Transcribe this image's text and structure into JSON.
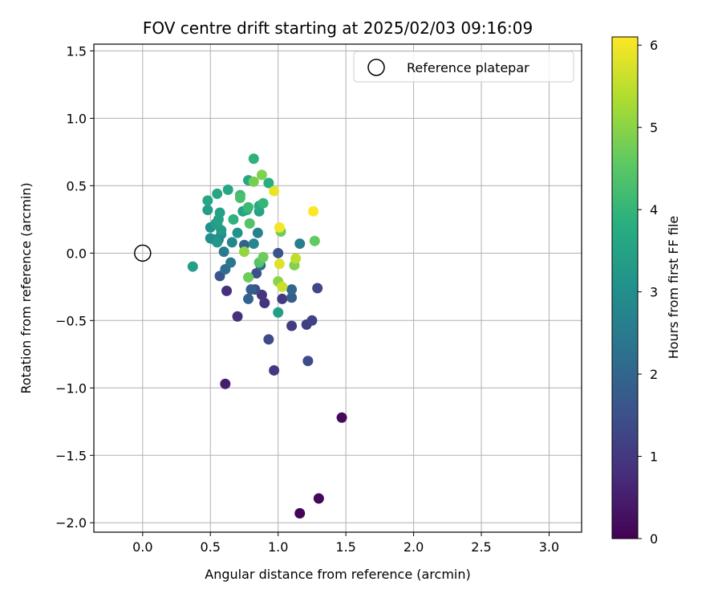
{
  "chart_data": {
    "type": "scatter",
    "title": "FOV centre drift starting at 2025/02/03 09:16:09",
    "xlabel": "Angular distance from reference (arcmin)",
    "ylabel": "Rotation from reference (arcmin)",
    "xlim": [
      -0.36,
      3.24
    ],
    "ylim": [
      -2.07,
      1.55
    ],
    "xticks": [
      0.0,
      0.5,
      1.0,
      1.5,
      2.0,
      2.5,
      3.0
    ],
    "xtick_labels": [
      "0.0",
      "0.5",
      "1.0",
      "1.5",
      "2.0",
      "2.5",
      "3.0"
    ],
    "yticks": [
      1.5,
      1.0,
      0.5,
      0.0,
      -0.5,
      -1.0,
      -1.5,
      -2.0
    ],
    "ytick_labels": [
      "1.5",
      "1.0",
      "0.5",
      "0.0",
      "−0.5",
      "−1.0",
      "−1.5",
      "−2.0"
    ],
    "grid": true,
    "legend": {
      "position": "top-right",
      "entries": [
        "Reference platepar"
      ]
    },
    "reference_point": {
      "x": 0.0,
      "y": 0.0
    },
    "colorbar": {
      "label": "Hours from first FF file",
      "range": [
        0,
        6.1
      ],
      "ticks": [
        0,
        1,
        2,
        3,
        4,
        5,
        6
      ],
      "tick_labels": [
        "0",
        "1",
        "2",
        "3",
        "4",
        "5",
        "6"
      ],
      "colormap": "viridis"
    },
    "points": [
      {
        "x": 1.16,
        "y": -1.93,
        "c": 0.05
      },
      {
        "x": 1.3,
        "y": -1.82,
        "c": 0.1
      },
      {
        "x": 1.47,
        "y": -1.22,
        "c": 0.15
      },
      {
        "x": 0.61,
        "y": -0.97,
        "c": 0.5
      },
      {
        "x": 0.62,
        "y": -0.28,
        "c": 0.8
      },
      {
        "x": 0.7,
        "y": -0.47,
        "c": 0.8
      },
      {
        "x": 0.88,
        "y": -0.31,
        "c": 0.9
      },
      {
        "x": 0.9,
        "y": -0.37,
        "c": 0.9
      },
      {
        "x": 0.97,
        "y": -0.87,
        "c": 1.0
      },
      {
        "x": 1.03,
        "y": -0.34,
        "c": 1.0
      },
      {
        "x": 1.1,
        "y": -0.54,
        "c": 1.1
      },
      {
        "x": 1.21,
        "y": -0.53,
        "c": 1.1
      },
      {
        "x": 1.25,
        "y": -0.5,
        "c": 1.2
      },
      {
        "x": 1.29,
        "y": -0.26,
        "c": 1.3
      },
      {
        "x": 1.22,
        "y": -0.8,
        "c": 1.4
      },
      {
        "x": 0.93,
        "y": -0.64,
        "c": 1.4
      },
      {
        "x": 0.83,
        "y": -0.27,
        "c": 1.5
      },
      {
        "x": 0.84,
        "y": -0.15,
        "c": 1.5
      },
      {
        "x": 0.57,
        "y": -0.17,
        "c": 1.6
      },
      {
        "x": 1.0,
        "y": 0.0,
        "c": 1.6
      },
      {
        "x": 1.1,
        "y": -0.33,
        "c": 1.8
      },
      {
        "x": 0.8,
        "y": -0.27,
        "c": 1.8
      },
      {
        "x": 0.78,
        "y": -0.34,
        "c": 1.9
      },
      {
        "x": 0.75,
        "y": 0.06,
        "c": 1.9
      },
      {
        "x": 1.1,
        "y": -0.27,
        "c": 2.0
      },
      {
        "x": 0.87,
        "y": -0.09,
        "c": 2.1
      },
      {
        "x": 0.61,
        "y": -0.12,
        "c": 2.2
      },
      {
        "x": 0.65,
        "y": -0.07,
        "c": 2.4
      },
      {
        "x": 0.6,
        "y": 0.01,
        "c": 2.5
      },
      {
        "x": 0.56,
        "y": 0.1,
        "c": 2.5
      },
      {
        "x": 1.16,
        "y": 0.07,
        "c": 2.6
      },
      {
        "x": 0.85,
        "y": 0.15,
        "c": 2.7
      },
      {
        "x": 0.82,
        "y": 0.07,
        "c": 2.8
      },
      {
        "x": 0.66,
        "y": 0.08,
        "c": 2.8
      },
      {
        "x": 0.58,
        "y": 0.14,
        "c": 2.9
      },
      {
        "x": 0.53,
        "y": 0.1,
        "c": 3.0
      },
      {
        "x": 0.5,
        "y": 0.11,
        "c": 3.0
      },
      {
        "x": 0.5,
        "y": 0.19,
        "c": 3.1
      },
      {
        "x": 0.7,
        "y": 0.15,
        "c": 3.1
      },
      {
        "x": 0.55,
        "y": 0.08,
        "c": 3.2
      },
      {
        "x": 0.58,
        "y": 0.17,
        "c": 3.3
      },
      {
        "x": 0.54,
        "y": 0.22,
        "c": 3.3
      },
      {
        "x": 0.48,
        "y": 0.32,
        "c": 3.4
      },
      {
        "x": 0.55,
        "y": 0.21,
        "c": 3.4
      },
      {
        "x": 0.37,
        "y": -0.1,
        "c": 3.4
      },
      {
        "x": 1.0,
        "y": -0.44,
        "c": 3.4
      },
      {
        "x": 0.57,
        "y": 0.3,
        "c": 3.5
      },
      {
        "x": 0.56,
        "y": 0.25,
        "c": 3.5
      },
      {
        "x": 0.86,
        "y": 0.31,
        "c": 3.5
      },
      {
        "x": 0.74,
        "y": 0.31,
        "c": 3.5
      },
      {
        "x": 0.63,
        "y": 0.47,
        "c": 3.6
      },
      {
        "x": 0.55,
        "y": 0.44,
        "c": 3.6
      },
      {
        "x": 0.48,
        "y": 0.39,
        "c": 3.6
      },
      {
        "x": 0.78,
        "y": 0.54,
        "c": 3.6
      },
      {
        "x": 0.86,
        "y": 0.35,
        "c": 3.7
      },
      {
        "x": 0.93,
        "y": 0.52,
        "c": 3.8
      },
      {
        "x": 0.77,
        "y": 0.32,
        "c": 3.8
      },
      {
        "x": 0.67,
        "y": 0.25,
        "c": 3.9
      },
      {
        "x": 0.82,
        "y": 0.7,
        "c": 3.9
      },
      {
        "x": 0.89,
        "y": 0.37,
        "c": 4.0
      },
      {
        "x": 0.72,
        "y": 0.43,
        "c": 4.1
      },
      {
        "x": 0.78,
        "y": 0.34,
        "c": 4.1
      },
      {
        "x": 0.72,
        "y": 0.41,
        "c": 4.3
      },
      {
        "x": 0.79,
        "y": 0.22,
        "c": 4.4
      },
      {
        "x": 0.86,
        "y": -0.07,
        "c": 4.4
      },
      {
        "x": 1.27,
        "y": 0.09,
        "c": 4.6
      },
      {
        "x": 1.02,
        "y": 0.16,
        "c": 4.7
      },
      {
        "x": 0.89,
        "y": -0.03,
        "c": 4.7
      },
      {
        "x": 0.78,
        "y": -0.18,
        "c": 4.7
      },
      {
        "x": 0.82,
        "y": 0.53,
        "c": 4.8
      },
      {
        "x": 0.88,
        "y": 0.58,
        "c": 4.9
      },
      {
        "x": 1.12,
        "y": -0.09,
        "c": 4.9
      },
      {
        "x": 1.0,
        "y": -0.21,
        "c": 5.0
      },
      {
        "x": 0.75,
        "y": 0.01,
        "c": 5.1
      },
      {
        "x": 1.13,
        "y": -0.04,
        "c": 5.5
      },
      {
        "x": 1.03,
        "y": -0.25,
        "c": 5.6
      },
      {
        "x": 1.01,
        "y": -0.08,
        "c": 5.8
      },
      {
        "x": 0.97,
        "y": 0.46,
        "c": 5.9
      },
      {
        "x": 1.01,
        "y": 0.19,
        "c": 6.0
      },
      {
        "x": 1.26,
        "y": 0.31,
        "c": 6.1
      }
    ]
  }
}
